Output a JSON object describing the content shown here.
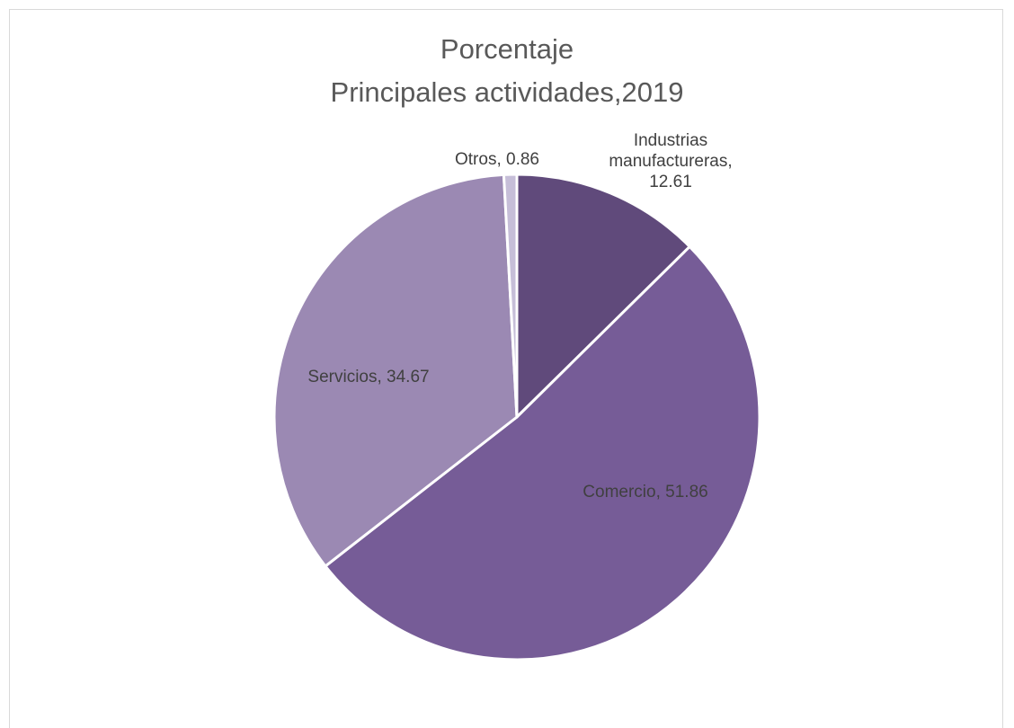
{
  "chart_data": {
    "type": "pie",
    "title": "Porcentaje",
    "subtitle": "Principales actividades,2019",
    "categories": [
      "Industrias manufactureras",
      "Comercio",
      "Servicios",
      "Otros"
    ],
    "values": [
      12.61,
      51.86,
      34.67,
      0.86
    ],
    "colors": [
      "#604a7b",
      "#765c97",
      "#9b89b3",
      "#c6bed8"
    ],
    "data_labels": [
      [
        "Industrias",
        "manufactureras,",
        "12.61"
      ],
      [
        "Comercio, 51.86"
      ],
      [
        "Servicios, 34.67"
      ],
      [
        "Otros, 0.86"
      ]
    ],
    "legend": "none"
  }
}
